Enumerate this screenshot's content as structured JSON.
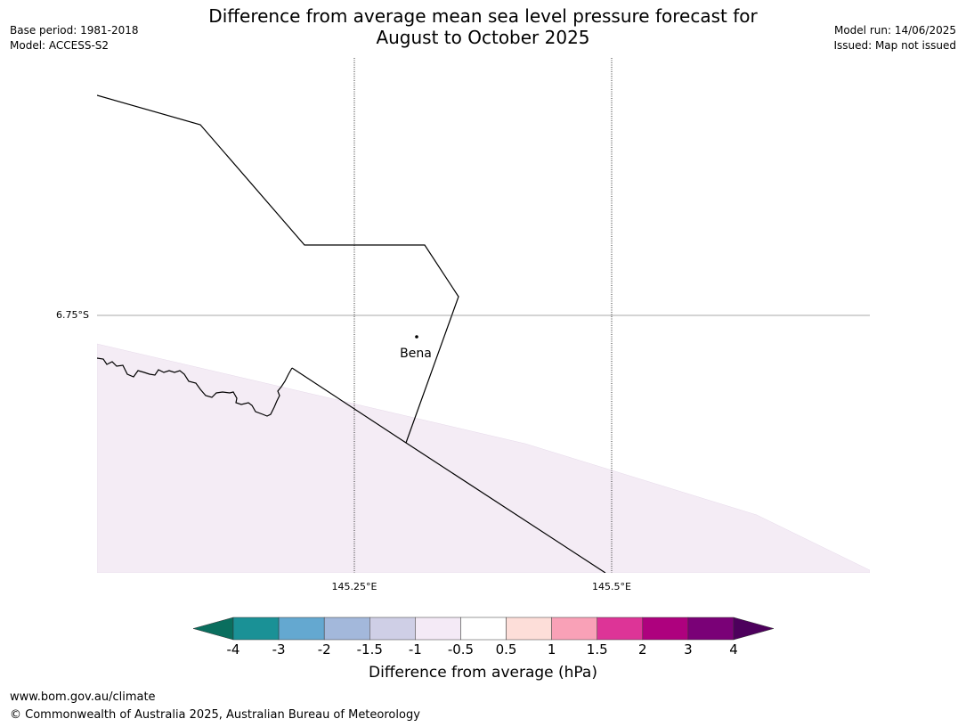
{
  "title": {
    "line1": "Difference from average mean sea level pressure forecast for",
    "line2": "August to October 2025"
  },
  "meta_left": {
    "base_period": "Base period: 1981-2018",
    "model": "Model: ACCESS-S2"
  },
  "meta_right": {
    "model_run": "Model run: 14/06/2025",
    "issued": "Issued: Map not issued"
  },
  "map": {
    "lat_label": "6.75°S",
    "lon_labels": [
      "145.25°E",
      "145.5°E"
    ],
    "place": "Bena",
    "shaded_value_class": "-1 to -0.5"
  },
  "colorbar": {
    "title": "Difference from average (hPa)",
    "ticks": [
      "-4",
      "-3",
      "-2",
      "-1.5",
      "-1",
      "-0.5",
      "0.5",
      "1",
      "1.5",
      "2",
      "3",
      "4"
    ],
    "colors": {
      "below_min": "#0a6e5e",
      "bins": [
        "#1a9196",
        "#64a8d0",
        "#a3b8db",
        "#cfcfe6",
        "#f4eaf6",
        "#ffffff",
        "#fdded9",
        "#f9a1b7",
        "#dd3497",
        "#ae017e",
        "#7a0177"
      ],
      "above_max": "#4d005c"
    }
  },
  "footer": {
    "url": "www.bom.gov.au/climate",
    "copyright": "© Commonwealth of Australia 2025, Australian Bureau of Meteorology"
  }
}
